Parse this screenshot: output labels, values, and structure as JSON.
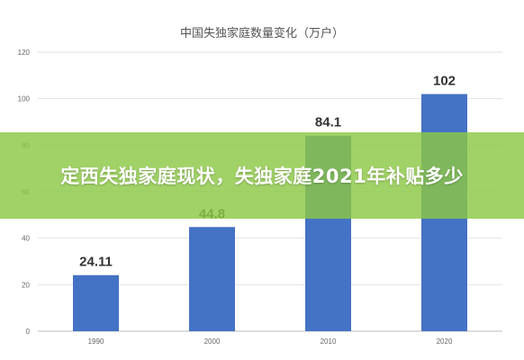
{
  "banner": {
    "text": "定西失独家庭现状，失独家庭2021年补贴多少"
  },
  "chart_data": {
    "type": "bar",
    "title": "中国失独家庭数量变化（万户）",
    "categories": [
      "1990",
      "2000",
      "2010",
      "2020"
    ],
    "values": [
      24.11,
      44.8,
      84.1,
      102
    ],
    "value_labels": [
      "24.11",
      "44.8",
      "84.1",
      "102"
    ],
    "ylim": [
      0,
      120
    ],
    "yticks": [
      0,
      20,
      40,
      60,
      80,
      100,
      120
    ],
    "grid": true,
    "legend": "none",
    "bar_color": "#4472c4"
  }
}
